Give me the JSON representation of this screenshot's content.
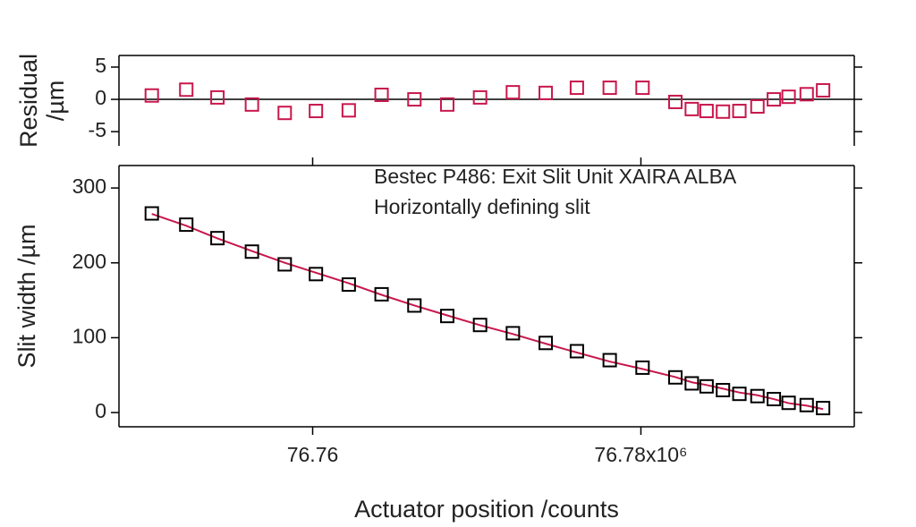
{
  "chart_data": [
    {
      "type": "scatter",
      "ylabel": [
        "Residual",
        "/µm"
      ],
      "x": [
        76.7502,
        76.7523,
        76.7542,
        76.7563,
        76.7583,
        76.7602,
        76.7622,
        76.7642,
        76.7662,
        76.7682,
        76.7702,
        76.7722,
        76.7742,
        76.7761,
        76.7781,
        76.7801,
        76.7821,
        76.7831,
        76.784,
        76.785,
        76.786,
        76.7871,
        76.7881,
        76.789,
        76.7901,
        76.7911
      ],
      "series": [
        {
          "color": "#c8174c",
          "values": [
            0.6,
            1.5,
            0.3,
            -0.8,
            -2.1,
            -1.8,
            -1.7,
            0.7,
            0,
            -0.8,
            0.3,
            1.1,
            1.0,
            1.8,
            1.8,
            1.8,
            -0.4,
            -1.5,
            -1.8,
            -1.9,
            -1.8,
            -1.1,
            0,
            0.4,
            0.8,
            1.4
          ]
        }
      ],
      "xlim": [
        76.7482,
        76.793
      ],
      "ylim": [
        -7.2,
        6.8
      ],
      "yticks": [
        -5,
        0,
        5
      ],
      "zero_line": true
    },
    {
      "type": "scatter",
      "annotations": [
        "Bestec P486: Exit Slit Unit XAIRA ALBA",
        "Horizontally defining slit"
      ],
      "xlabel": "Actuator position /counts",
      "ylabel": "Slit width /µm",
      "x": [
        76.7502,
        76.7523,
        76.7542,
        76.7563,
        76.7583,
        76.7602,
        76.7622,
        76.7642,
        76.7662,
        76.7682,
        76.7702,
        76.7722,
        76.7742,
        76.7761,
        76.7781,
        76.7801,
        76.7821,
        76.7831,
        76.784,
        76.785,
        76.786,
        76.7871,
        76.7881,
        76.789,
        76.7901,
        76.7911
      ],
      "series": [
        {
          "color": "#000000",
          "values": [
            266,
            251,
            233,
            215,
            198,
            185,
            171,
            158,
            143,
            129,
            117,
            106,
            93,
            82,
            70,
            60,
            47,
            39,
            35,
            30,
            25,
            22,
            18,
            13,
            10,
            6
          ]
        },
        {
          "type": "line",
          "color": "#c8174c",
          "values": [
            265.4,
            249.5,
            232.7,
            215.8,
            200.1,
            186.8,
            172.7,
            157.3,
            143,
            129.8,
            116.7,
            104.9,
            92,
            80.2,
            68.2,
            58.2,
            47.4,
            40.5,
            36.8,
            31.9,
            26.8,
            23.1,
            18,
            12.6,
            9.2,
            4.6
          ]
        }
      ],
      "xlim": [
        76.7482,
        76.793
      ],
      "xticks": [
        76.76,
        {
          "value": 76.78,
          "label": "76.78x10⁶"
        }
      ],
      "ylim": [
        -19,
        330
      ],
      "yticks": [
        0,
        100,
        200,
        300
      ]
    }
  ]
}
